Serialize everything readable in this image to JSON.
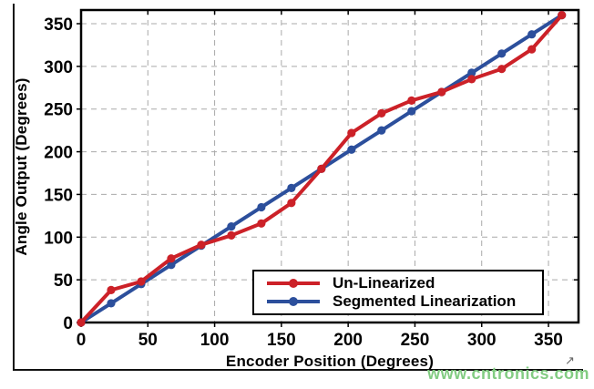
{
  "watermark": {
    "text": "www.cntronics.com",
    "color_hex": "#82cc82"
  },
  "legend": {
    "border_color": "#000000",
    "background": "#ffffff"
  },
  "axes": {
    "border_color": "#000000",
    "grid_color": "#a9a9a9",
    "tick_label_color": "#000000"
  },
  "chart_data": {
    "type": "line",
    "title": "",
    "xlabel": "Encoder Position (Degrees)",
    "ylabel": "Angle Output (Degrees)",
    "xlim": [
      0,
      372.5
    ],
    "ylim": [
      0,
      366
    ],
    "x_ticks": [
      0,
      50,
      100,
      150,
      200,
      250,
      300,
      350
    ],
    "y_ticks": [
      0,
      50,
      100,
      150,
      200,
      250,
      300,
      350
    ],
    "grid": true,
    "grid_style": "dashed",
    "legend_position": "lower right",
    "x": [
      0,
      22.5,
      45,
      67.5,
      90,
      112.5,
      135,
      157.5,
      180,
      202.5,
      225,
      247.5,
      270,
      292.5,
      315,
      337.5,
      360
    ],
    "series": [
      {
        "name": "Un-Linearized",
        "color": "#cc2128",
        "marker": "circle",
        "values": [
          0,
          38,
          48,
          75,
          91,
          102,
          116,
          140,
          180,
          222,
          245,
          260,
          270,
          285,
          297,
          320,
          360
        ]
      },
      {
        "name": "Segmented Linearization",
        "color": "#2c4f9c",
        "marker": "circle",
        "values": [
          0,
          22.5,
          45,
          67.5,
          90,
          112.5,
          135,
          157.5,
          180,
          202.5,
          225,
          247.5,
          270,
          292.5,
          315,
          337.5,
          360
        ]
      }
    ]
  }
}
